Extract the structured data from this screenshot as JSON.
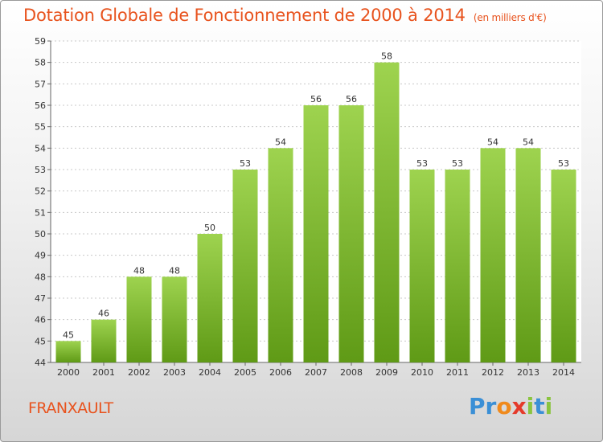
{
  "header": {
    "title": "Dotation Globale de Fonctionnement de 2000 à 2014",
    "unit": "(en milliers d'€)"
  },
  "footer": {
    "commune": "FRANXAULT",
    "brand_letters": [
      {
        "char": "P",
        "color": "#3a8fd6"
      },
      {
        "char": "r",
        "color": "#3a8fd6"
      },
      {
        "char": "o",
        "color": "#f08a1c"
      },
      {
        "char": "x",
        "color": "#e53a2a"
      },
      {
        "char": "i",
        "color": "#8ac43f"
      },
      {
        "char": "t",
        "color": "#3a8fd6"
      },
      {
        "char": "i",
        "color": "#8ac43f"
      }
    ]
  },
  "colors": {
    "bar_top": "#9ed34f",
    "bar_bottom": "#5f9a16",
    "title": "#e8531e",
    "grid": "#c8c8c8"
  },
  "chart_data": {
    "type": "bar",
    "categories": [
      "2000",
      "2001",
      "2002",
      "2003",
      "2004",
      "2005",
      "2006",
      "2007",
      "2008",
      "2009",
      "2010",
      "2011",
      "2012",
      "2013",
      "2014"
    ],
    "values": [
      45,
      46,
      48,
      48,
      50,
      53,
      54,
      56,
      56,
      58,
      53,
      53,
      54,
      54,
      53
    ],
    "title": "Dotation Globale de Fonctionnement de 2000 à 2014",
    "subtitle": "(en milliers d'€)",
    "ylim": [
      44,
      59
    ],
    "yticks": [
      44,
      45,
      46,
      47,
      48,
      49,
      50,
      51,
      52,
      53,
      54,
      55,
      56,
      57,
      58,
      59
    ],
    "grid": true,
    "legend": "none"
  }
}
